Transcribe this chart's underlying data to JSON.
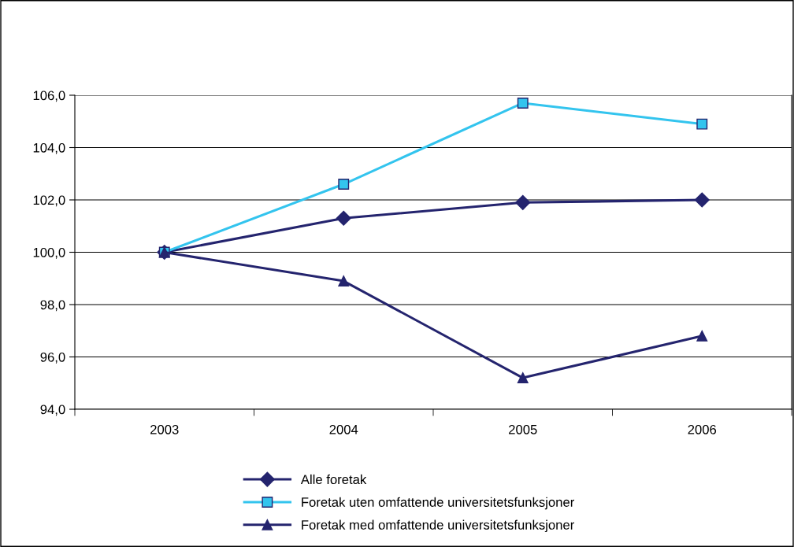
{
  "chart_data": {
    "type": "line",
    "categories": [
      "2003",
      "2004",
      "2005",
      "2006"
    ],
    "series": [
      {
        "name": "Alle foretak",
        "color": "#24246e",
        "marker": "diamond",
        "values": [
          100.0,
          101.3,
          101.9,
          102.0
        ]
      },
      {
        "name": "Foretak uten omfattende universitetsfunksjoner",
        "color": "#33c4ee",
        "marker": "square",
        "values": [
          100.0,
          102.6,
          105.7,
          104.9
        ]
      },
      {
        "name": "Foretak med omfattende universitetsfunksjoner",
        "color": "#24246e",
        "marker": "triangle",
        "values": [
          100.0,
          98.9,
          95.2,
          96.8
        ]
      }
    ],
    "ylim": [
      94,
      106
    ],
    "yticks": [
      {
        "value": 94,
        "label": "94,0"
      },
      {
        "value": 96,
        "label": "96,0"
      },
      {
        "value": 98,
        "label": "98,0"
      },
      {
        "value": 100,
        "label": "100,0"
      },
      {
        "value": 102,
        "label": "102,0"
      },
      {
        "value": 104,
        "label": "104,0"
      },
      {
        "value": 106,
        "label": "106,0"
      }
    ],
    "grid": "y",
    "legend": "bottom",
    "line_style": "solid"
  }
}
